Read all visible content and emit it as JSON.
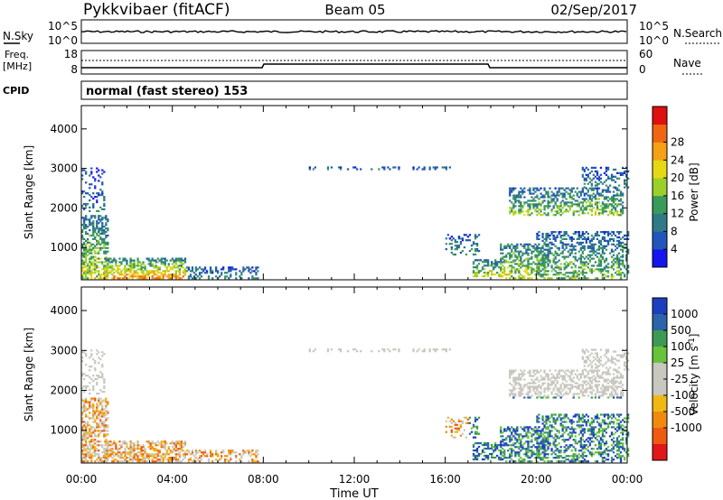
{
  "header": {
    "station": "Pykkvibaer (fitACF)",
    "beam": "Beam 05",
    "date": "02/Sep/2017"
  },
  "nsky": {
    "label": "N.Sky",
    "ticks": [
      "10^5",
      "10^0"
    ],
    "right_label": "N.Search",
    "right_ticks": [
      "10^5",
      "10^0"
    ]
  },
  "freq": {
    "label_line1": "Freq.",
    "label_line2": "[MHz]",
    "ticks": [
      "18",
      "8"
    ],
    "right_label": "Nave",
    "right_ticks": [
      "60",
      "0"
    ]
  },
  "cpid": {
    "label": "CPID",
    "text": "normal (fast stereo) 153"
  },
  "x_ticks": [
    "00:00",
    "04:00",
    "08:00",
    "12:00",
    "16:00",
    "20:00",
    "00:00"
  ],
  "x_label": "Time UT",
  "chart_data": [
    {
      "type": "heatmap",
      "quantity": "Power",
      "ylabel": "Slant Range [km]",
      "ylim": [
        180,
        4590
      ],
      "yticks": [
        1000,
        2000,
        3000,
        4000
      ],
      "xlim": [
        "00:00",
        "24:00"
      ],
      "colorbar": {
        "label": "Power [dB]",
        "ticks": [
          "4",
          "8",
          "12",
          "16",
          "20",
          "24",
          "28"
        ],
        "colors": [
          "#1515ee",
          "#2255bb",
          "#2f7a86",
          "#3a9a5a",
          "#9ccf2a",
          "#e7d815",
          "#f5a015",
          "#ee6611",
          "#e01010"
        ]
      }
    },
    {
      "type": "heatmap",
      "quantity": "Velocity",
      "ylabel": "Slant Range [km]",
      "ylim": [
        180,
        4590
      ],
      "yticks": [
        1000,
        2000,
        3000,
        4000
      ],
      "xlim": [
        "00:00",
        "24:00"
      ],
      "colorbar": {
        "label": "Velocity [m s^-1]",
        "ticks": [
          "1000",
          "500",
          "100",
          "25",
          "-25",
          "-100",
          "-500",
          "-1000"
        ],
        "colors": [
          "#1a3fbf",
          "#2b64aa",
          "#3d9a55",
          "#67c43a",
          "#c8c8c0",
          "#c8c8c0",
          "#f0b814",
          "#f08a0e",
          "#ee5a10",
          "#e01818"
        ]
      }
    }
  ]
}
